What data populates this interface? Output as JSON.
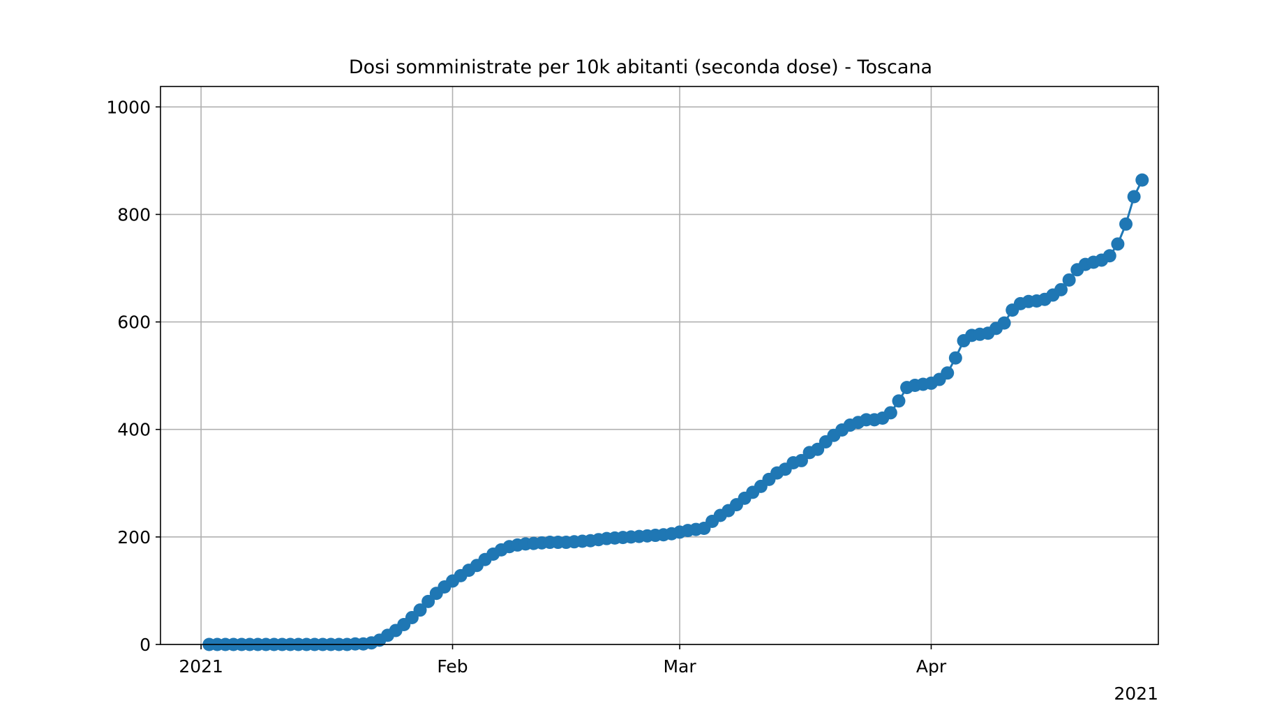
{
  "chart_data": {
    "type": "line",
    "title": "Dosi somministrate per 10k abitanti (seconda dose) - Toscana",
    "xlabel": "",
    "ylabel": "",
    "x_tick_labels": [
      "2021",
      "Feb",
      "Mar",
      "Apr"
    ],
    "x_tick_dates": [
      "2021-01-01",
      "2021-02-01",
      "2021-03-01",
      "2021-04-01"
    ],
    "x_offset_label": "2021",
    "xlim": [
      "2020-12-27",
      "2021-04-29"
    ],
    "ylim": [
      0,
      1038
    ],
    "y_ticks": [
      0,
      200,
      400,
      600,
      800,
      1000
    ],
    "grid": true,
    "legend": "none",
    "color": "#1f77b4",
    "marker": "circle",
    "series": [
      {
        "x_start": "2021-01-02",
        "x_end": "2021-04-21",
        "values": [
          0,
          0,
          0,
          0,
          0,
          0,
          0,
          0,
          0,
          0,
          0,
          0,
          0,
          0,
          0,
          0,
          0,
          0,
          1,
          1,
          3,
          8,
          17,
          26,
          37,
          50,
          64,
          80,
          95,
          107,
          118,
          128,
          138,
          147,
          158,
          168,
          176,
          182,
          185,
          187,
          188,
          189,
          190,
          190,
          190,
          191,
          192,
          193,
          195,
          197,
          198,
          199,
          200,
          201,
          202,
          203,
          204,
          206,
          209,
          212,
          214,
          216,
          229,
          240,
          249,
          260,
          272,
          283,
          294,
          307,
          319,
          326,
          338,
          342,
          357,
          363,
          377,
          389,
          399,
          408,
          413,
          418,
          418,
          421,
          431,
          453,
          478,
          482,
          484,
          486,
          493,
          505,
          533,
          565,
          575,
          577,
          579,
          588,
          598,
          622,
          634,
          638,
          639,
          642,
          650,
          660,
          678,
          697,
          707,
          711,
          715,
          723,
          745,
          782,
          833,
          864
        ]
      }
    ]
  }
}
